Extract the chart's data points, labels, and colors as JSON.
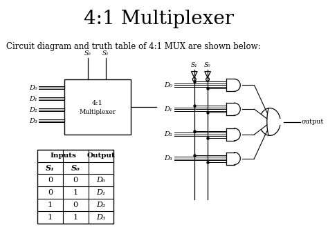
{
  "title": "4:1 Multiplexer",
  "subtitle": "Circuit diagram and truth table of 4:1 MUX are shown below:",
  "bg_color": "#ffffff",
  "title_fontsize": 20,
  "subtitle_fontsize": 8.5,
  "rows": [
    [
      "0",
      "0",
      "D₀"
    ],
    [
      "0",
      "1",
      "D₁"
    ],
    [
      "1",
      "0",
      "D₂"
    ],
    [
      "1",
      "1",
      "D₃"
    ]
  ],
  "d_labels": [
    "D₀",
    "D₁",
    "D₂",
    "D₃"
  ],
  "s_labels_top": [
    "S₀",
    "S₁"
  ],
  "s_labels_right": [
    "S₁",
    "S₀"
  ]
}
